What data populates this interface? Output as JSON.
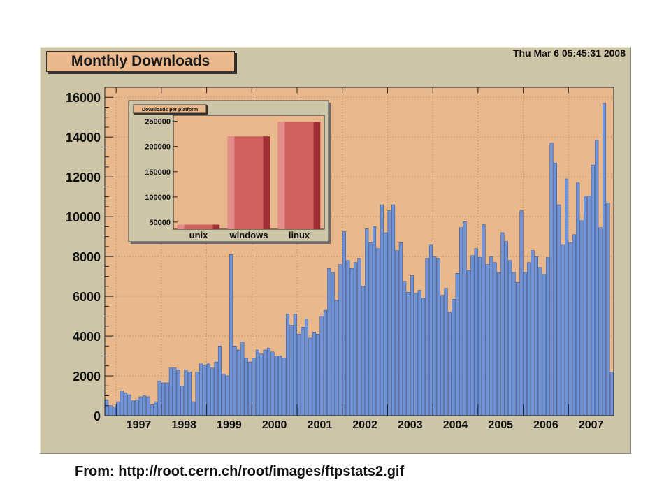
{
  "header": {
    "title": "Monthly Downloads",
    "timestamp": "Thu Mar  6 05:45:31 2008"
  },
  "footer": {
    "source": "From: http://root.cern.ch/root/images/ftpstats2.gif"
  },
  "colors": {
    "canvas": "#cdc5a7",
    "plot_area": "#e9b98d",
    "bar_fill": "#6f93d6",
    "bar_edge": "#2c4f8f",
    "inset_bar": "#d05f5f",
    "inset_bar_light": "#e48c8c",
    "inset_bar_dark": "#9e2e34"
  },
  "chart_data": [
    {
      "type": "bar",
      "title": "Monthly Downloads",
      "xlabel": "",
      "ylabel": "",
      "ylim": [
        0,
        16500
      ],
      "grid": true,
      "year_ticks": [
        "1997",
        "1998",
        "1999",
        "2000",
        "2001",
        "2002",
        "2003",
        "2004",
        "2005",
        "2006",
        "2007"
      ],
      "y_ticks": [
        0,
        2000,
        4000,
        6000,
        8000,
        10000,
        12000,
        14000,
        16000
      ],
      "x_start": "1996-10",
      "values": [
        800,
        500,
        450,
        700,
        1250,
        1150,
        1050,
        750,
        800,
        950,
        1000,
        950,
        550,
        700,
        1750,
        1650,
        1650,
        2400,
        2400,
        2300,
        1500,
        2300,
        2200,
        700,
        2200,
        2600,
        2550,
        2600,
        2400,
        2700,
        3500,
        2100,
        2000,
        8100,
        3500,
        3300,
        3700,
        2900,
        2700,
        2900,
        3300,
        3100,
        3300,
        3400,
        3200,
        3000,
        3000,
        2900,
        5100,
        4550,
        5100,
        4100,
        4450,
        4850,
        3900,
        4200,
        4100,
        5000,
        5300,
        7400,
        7200,
        5800,
        7600,
        9250,
        7800,
        7400,
        7700,
        7900,
        6500,
        9400,
        8700,
        9500,
        8400,
        10600,
        9200,
        10300,
        10600,
        8300,
        8700,
        6750,
        6200,
        7050,
        6150,
        6300,
        5900,
        7900,
        8600,
        8000,
        7900,
        6050,
        6400,
        5200,
        5850,
        7150,
        9450,
        9750,
        7300,
        8050,
        8400,
        7950,
        9600,
        7600,
        8000,
        7700,
        7200,
        9200,
        8750,
        7800,
        7200,
        6700,
        10300,
        7200,
        7700,
        8300,
        8000,
        7450,
        7100,
        7950,
        13700,
        12700,
        10600,
        8600,
        11900,
        8700,
        9100,
        11700,
        9800,
        11000,
        11050,
        12600,
        13850,
        9450,
        15700,
        10700,
        2200
      ]
    },
    {
      "type": "bar",
      "title": "Downloads per platform",
      "categories": [
        "unix",
        "windows",
        "linux"
      ],
      "values": [
        45000,
        220000,
        249000
      ],
      "ylim": [
        36000,
        262000
      ],
      "y_ticks": [
        50000,
        100000,
        150000,
        200000,
        250000
      ]
    }
  ]
}
